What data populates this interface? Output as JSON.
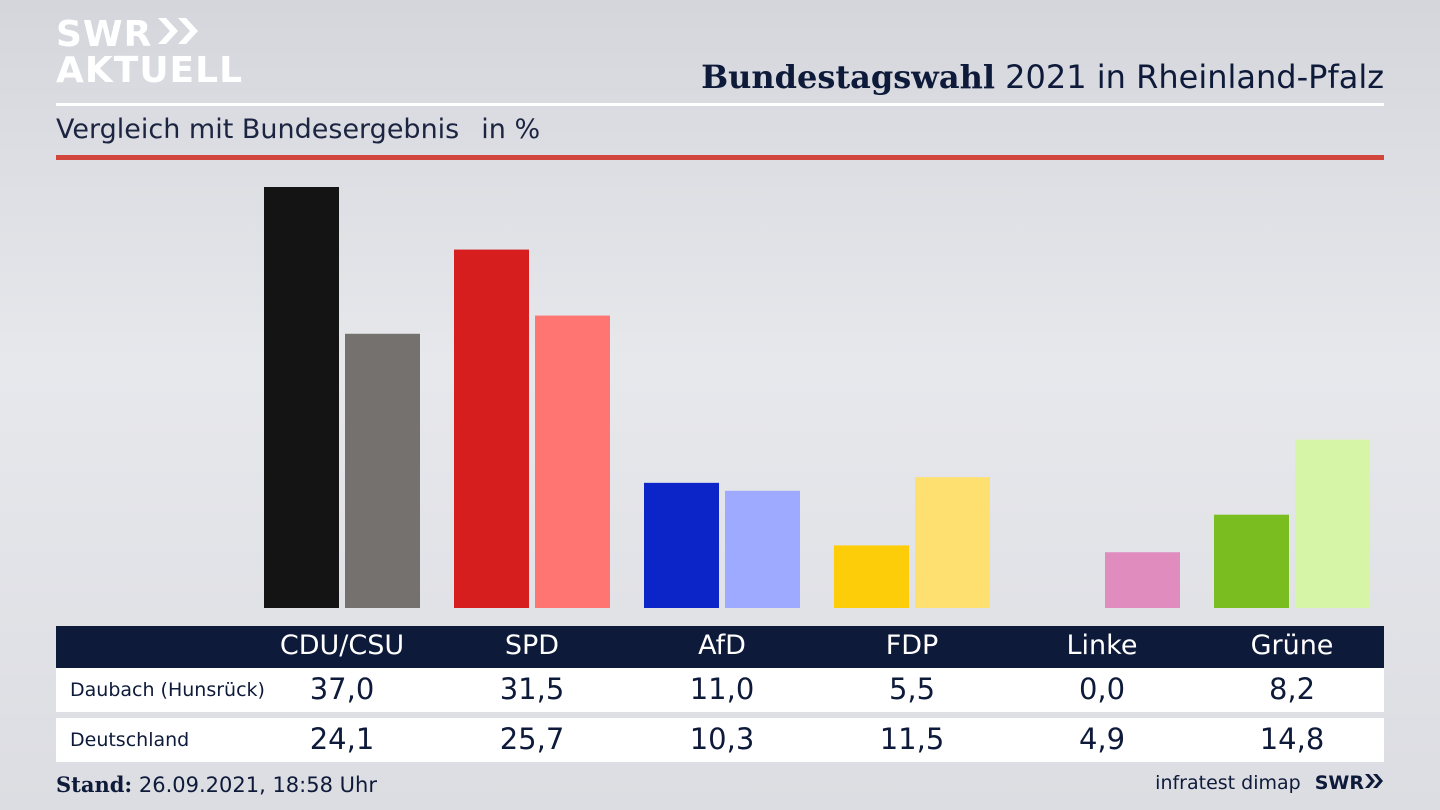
{
  "header": {
    "logo_line1": "SWR",
    "logo_line2": "AKTUELL",
    "title_bold": "Bundestagswahl",
    "title_rest": " 2021 in Rheinland-Pfalz",
    "subtitle": "Vergleich mit Bundesergebnis",
    "unit": "in %"
  },
  "colors": {
    "accent_red_rule": "#d2463d",
    "navy": "#0e1a3a"
  },
  "chart_data": {
    "type": "bar",
    "categories": [
      "CDU/CSU",
      "SPD",
      "AfD",
      "FDP",
      "Linke",
      "Grüne"
    ],
    "series": [
      {
        "name": "Daubach (Hunsrück)",
        "values": [
          37.0,
          31.5,
          11.0,
          5.5,
          0.0,
          8.2
        ],
        "labels": [
          "37,0",
          "31,5",
          "11,0",
          "5,5",
          "0,0",
          "8,2"
        ],
        "colors": [
          "#141414",
          "#d61e1e",
          "#0b25c8",
          "#fecd0a",
          "#e08cbe",
          "#7abd21"
        ]
      },
      {
        "name": "Deutschland",
        "values": [
          24.1,
          25.7,
          10.3,
          11.5,
          4.9,
          14.8
        ],
        "labels": [
          "24,1",
          "25,7",
          "10,3",
          "11,5",
          "4,9",
          "14,8"
        ],
        "colors": [
          "#74716f",
          "#ff7572",
          "#9daaff",
          "#fee071",
          "#e08cbe",
          "#d6f5a6"
        ]
      }
    ],
    "ylim": [
      0,
      37.0
    ],
    "grid": false,
    "legend": "none"
  },
  "footer": {
    "stand_label": "Stand:",
    "stand_value": " 26.09.2021, 18:58 Uhr",
    "source": "infratest dimap",
    "logo": "SWR"
  }
}
